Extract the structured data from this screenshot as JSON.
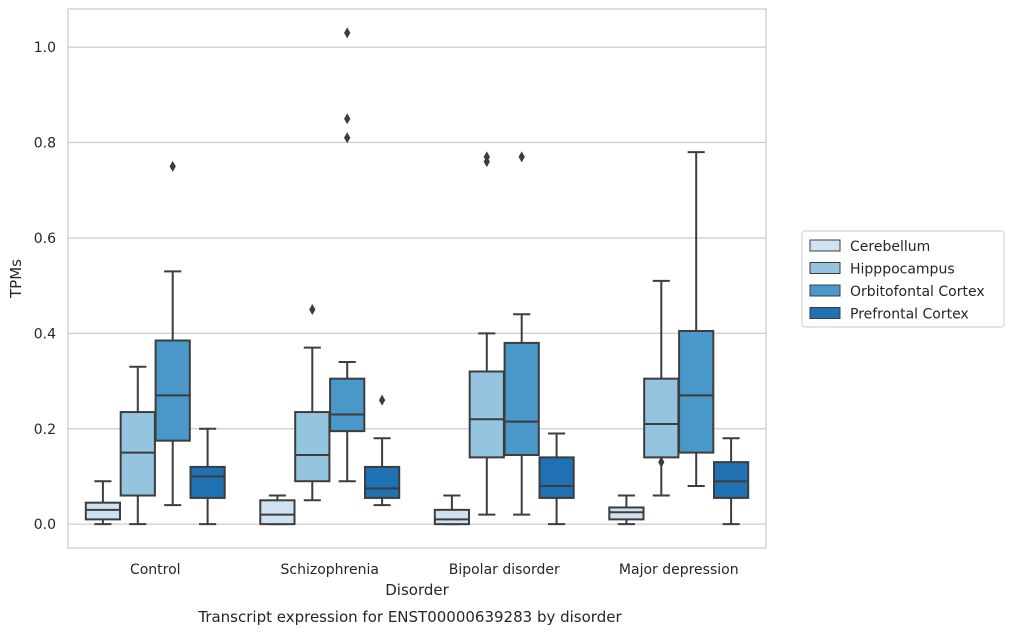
{
  "chart_data": {
    "type": "box",
    "title": "Transcript expression for ENST00000639283 by disorder",
    "xlabel": "Disorder",
    "ylabel": "TPMs",
    "ylim": [
      -0.05,
      1.08
    ],
    "yticks": [
      0.0,
      0.2,
      0.4,
      0.6,
      0.8,
      1.0
    ],
    "ytick_labels": [
      "0.0",
      "0.2",
      "0.4",
      "0.6",
      "0.8",
      "1.0"
    ],
    "grid": "horizontal",
    "legend_position": "right",
    "categories": [
      "Control",
      "Schizophrenia",
      "Bipolar disorder",
      "Major depression"
    ],
    "series": [
      {
        "name": "Cerebellum",
        "color": "#d0e2f2",
        "boxes": [
          {
            "whislo": 0.0,
            "q1": 0.01,
            "med": 0.03,
            "q3": 0.045,
            "whishi": 0.09,
            "fliers": []
          },
          {
            "whislo": 0.0,
            "q1": 0.0,
            "med": 0.02,
            "q3": 0.05,
            "whishi": 0.06,
            "fliers": []
          },
          {
            "whislo": 0.0,
            "q1": 0.0,
            "med": 0.01,
            "q3": 0.03,
            "whishi": 0.06,
            "fliers": []
          },
          {
            "whislo": 0.0,
            "q1": 0.01,
            "med": 0.025,
            "q3": 0.035,
            "whishi": 0.06,
            "fliers": []
          }
        ]
      },
      {
        "name": "Hipppocampus",
        "color": "#94c4df",
        "boxes": [
          {
            "whislo": 0.0,
            "q1": 0.06,
            "med": 0.15,
            "q3": 0.235,
            "whishi": 0.33,
            "fliers": []
          },
          {
            "whislo": 0.05,
            "q1": 0.09,
            "med": 0.145,
            "q3": 0.235,
            "whishi": 0.37,
            "fliers": [
              0.45
            ]
          },
          {
            "whislo": 0.02,
            "q1": 0.14,
            "med": 0.22,
            "q3": 0.32,
            "whishi": 0.4,
            "fliers": [
              0.76,
              0.77
            ]
          },
          {
            "whislo": 0.06,
            "q1": 0.14,
            "med": 0.21,
            "q3": 0.305,
            "whishi": 0.51,
            "fliers": [
              0.13
            ]
          }
        ]
      },
      {
        "name": "Orbitofontal Cortex",
        "color": "#4a98c9",
        "boxes": [
          {
            "whislo": 0.04,
            "q1": 0.175,
            "med": 0.27,
            "q3": 0.385,
            "whishi": 0.53,
            "fliers": [
              0.75
            ]
          },
          {
            "whislo": 0.09,
            "q1": 0.195,
            "med": 0.23,
            "q3": 0.305,
            "whishi": 0.34,
            "fliers": [
              0.81,
              0.85,
              1.03
            ]
          },
          {
            "whislo": 0.02,
            "q1": 0.145,
            "med": 0.215,
            "q3": 0.38,
            "whishi": 0.44,
            "fliers": [
              0.77
            ]
          },
          {
            "whislo": 0.08,
            "q1": 0.15,
            "med": 0.27,
            "q3": 0.405,
            "whishi": 0.78,
            "fliers": []
          }
        ]
      },
      {
        "name": "Prefrontal Cortex",
        "color": "#2070b4",
        "boxes": [
          {
            "whislo": 0.0,
            "q1": 0.055,
            "med": 0.1,
            "q3": 0.12,
            "whishi": 0.2,
            "fliers": []
          },
          {
            "whislo": 0.04,
            "q1": 0.055,
            "med": 0.075,
            "q3": 0.12,
            "whishi": 0.18,
            "fliers": [
              0.26
            ]
          },
          {
            "whislo": 0.0,
            "q1": 0.055,
            "med": 0.08,
            "q3": 0.14,
            "whishi": 0.19,
            "fliers": []
          },
          {
            "whislo": 0.0,
            "q1": 0.055,
            "med": 0.09,
            "q3": 0.13,
            "whishi": 0.18,
            "fliers": []
          }
        ]
      }
    ]
  }
}
